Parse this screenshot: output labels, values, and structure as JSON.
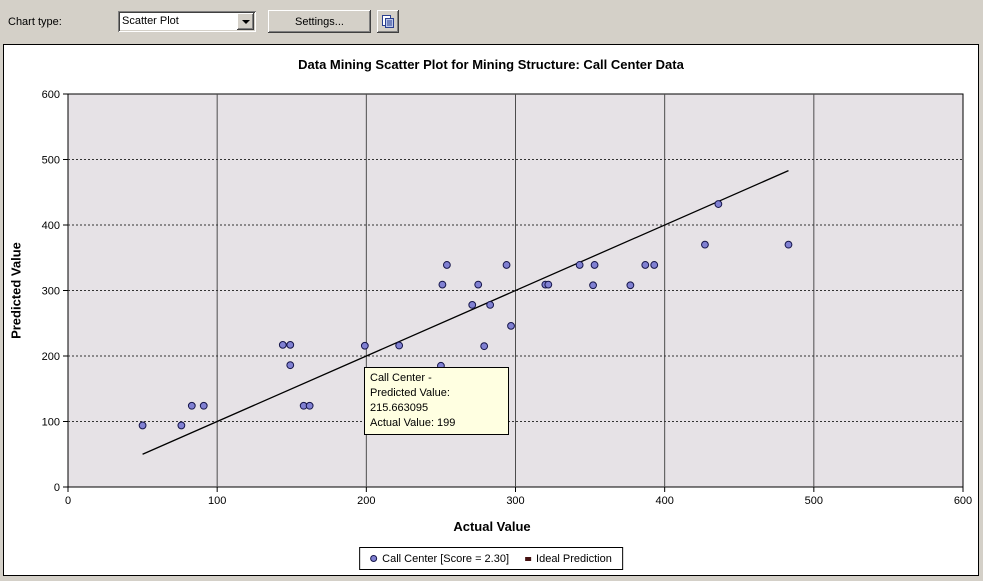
{
  "toolbar": {
    "chart_type_label": "Chart type:",
    "chart_type_value": "Scatter Plot",
    "settings_button": "Settings..."
  },
  "chart": {
    "title": "Data Mining Scatter Plot for Mining Structure: Call Center Data",
    "xlabel": "Actual Value",
    "ylabel": "Predicted Value"
  },
  "tooltip": {
    "series": "Call Center -",
    "predicted_line": "Predicted Value: 215.663095",
    "actual_line": "Actual Value: 199"
  },
  "legend": {
    "series_label": "Call Center [Score = 2.30]",
    "ideal_label": "Ideal Prediction"
  },
  "colors": {
    "window_bg": "#d4d0c8",
    "panel_bg": "#ffffff",
    "plot_bg": "#e6e2e6",
    "marker_fill": "#8080d2",
    "marker_stroke": "#15154a",
    "grid_vertical": "#4d4d4d",
    "grid_horizontal": "#333333",
    "ideal_line": "#000000",
    "tooltip_bg": "#ffffe1"
  },
  "chart_data": {
    "type": "scatter",
    "title": "Data Mining Scatter Plot for Mining Structure: Call Center Data",
    "xlabel": "Actual Value",
    "ylabel": "Predicted Value",
    "xlim": [
      0,
      600
    ],
    "ylim": [
      0,
      600
    ],
    "xticks": [
      0,
      100,
      200,
      300,
      400,
      500,
      600
    ],
    "yticks": [
      0,
      100,
      200,
      300,
      400,
      500,
      600
    ],
    "grid": true,
    "legend_position": "bottom",
    "series": [
      {
        "name": "Call Center [Score = 2.30]",
        "score": 2.3,
        "points": [
          [
            50,
            94
          ],
          [
            76,
            94
          ],
          [
            83,
            124
          ],
          [
            91,
            124
          ],
          [
            158,
            124
          ],
          [
            162,
            124
          ],
          [
            144,
            217
          ],
          [
            149,
            217
          ],
          [
            149,
            186
          ],
          [
            199,
            215.663095
          ],
          [
            222,
            216
          ],
          [
            250,
            185
          ],
          [
            254,
            339
          ],
          [
            294,
            339
          ],
          [
            251,
            309
          ],
          [
            275,
            309
          ],
          [
            271,
            278
          ],
          [
            283,
            278
          ],
          [
            297,
            246
          ],
          [
            279,
            215
          ],
          [
            320,
            309
          ],
          [
            322,
            309
          ],
          [
            343,
            339
          ],
          [
            353,
            339
          ],
          [
            387,
            339
          ],
          [
            393,
            339
          ],
          [
            352,
            308
          ],
          [
            377,
            308
          ],
          [
            427,
            370
          ],
          [
            436,
            432
          ],
          [
            483,
            370
          ]
        ]
      }
    ],
    "ideal_line": {
      "name": "Ideal Prediction",
      "from": [
        50,
        50
      ],
      "to": [
        483,
        483
      ]
    },
    "highlighted_point": {
      "actual": 199,
      "predicted": 215.663095
    }
  }
}
